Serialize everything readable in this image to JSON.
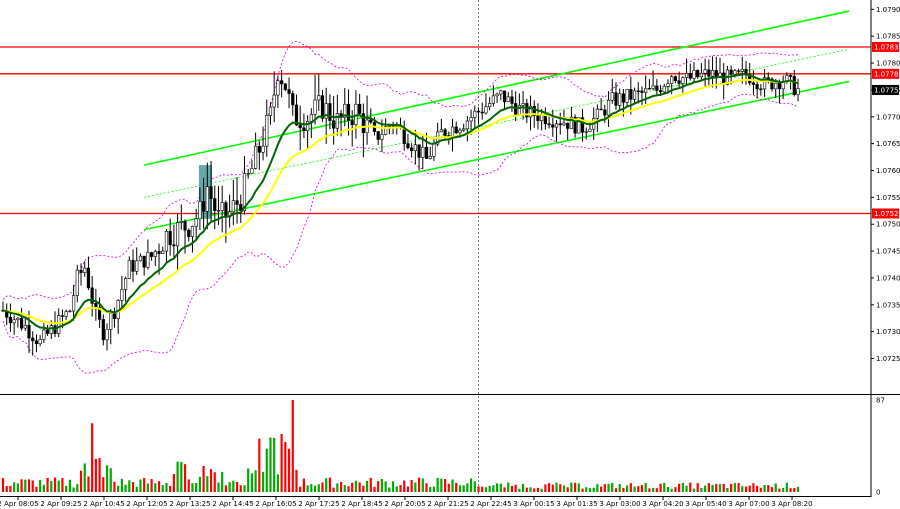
{
  "chart_data": {
    "type": "candlestick",
    "price_axis": {
      "ylim": [
        1.0721,
        1.0791
      ],
      "ticks": [
        "1.0790",
        "1.0785",
        "1.0780",
        "1.0775",
        "1.0770",
        "1.0765",
        "1.0760",
        "1.0755",
        "1.0750",
        "1.0745",
        "1.0740",
        "1.0735",
        "1.0730",
        "1.0725"
      ]
    },
    "volume_axis": {
      "ticks": [
        "87",
        "0"
      ]
    },
    "time_axis": {
      "labels": [
        "2 Apr 08:05",
        "2 Apr 09:25",
        "2 Apr 10:45",
        "2 Apr 12:05",
        "2 Apr 13:25",
        "2 Apr 14:45",
        "2 Apr 16:05",
        "2 Apr 17:25",
        "2 Apr 18:45",
        "2 Apr 20:05",
        "2 Apr 21:25",
        "2 Apr 22:45",
        "3 Apr 00:15",
        "3 Apr 01:35",
        "3 Apr 03:00",
        "3 Apr 04:20",
        "3 Apr 05:40",
        "3 Apr 07:00",
        "3 Apr 08:20"
      ]
    },
    "price_levels": [
      {
        "value": 1.0783,
        "label": "1.0783"
      },
      {
        "value": 1.0778,
        "label": "1.0778"
      },
      {
        "value": 1.0752,
        "label": "1.0752"
      }
    ],
    "current_price": {
      "value": 1.0775,
      "label": "1.0775"
    },
    "channel": {
      "upper": [
        [
          38,
          1.0761
        ],
        [
          210,
          1.0787
        ]
      ],
      "lower": [
        [
          38,
          1.0749
        ],
        [
          210,
          1.0774
        ]
      ],
      "mid": [
        [
          38,
          1.0755
        ],
        [
          210,
          1.078
        ]
      ]
    },
    "signal_box": {
      "i0": 53,
      "i1": 56,
      "top": 1.0761,
      "bottom": 1.0751
    },
    "session_divider_index": 128,
    "colors": {
      "up": "#00aa00",
      "down": "#ff0000",
      "candle": "#000000",
      "ma_fast": "#006400",
      "ma_slow": "#ffff00",
      "bands": "#cc00cc",
      "level": "#ff0000",
      "channel": "#00ff00",
      "signal": "#4a9a9a",
      "price_tag": "#000000"
    }
  }
}
